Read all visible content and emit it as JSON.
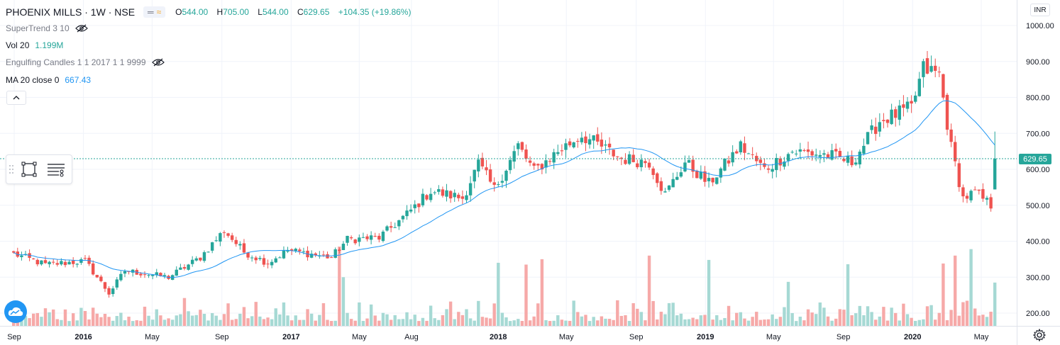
{
  "header": {
    "symbol": "PHOENIX MILLS · 1W · NSE",
    "toggle_a": "═",
    "toggle_b": "≈",
    "ohlc": {
      "o_label": "O",
      "o_value": "544.00",
      "h_label": "H",
      "h_value": "705.00",
      "l_label": "L",
      "l_value": "544.00",
      "c_label": "C",
      "c_value": "629.65",
      "change": "+104.35 (+19.86%)"
    }
  },
  "indicators": [
    {
      "name": "SuperTrend 3 10",
      "value": "",
      "hidden": true
    },
    {
      "name": "Vol 20",
      "value": "1.199M",
      "hidden": false
    },
    {
      "name": "Engulfing Candles 1 1 2017 1 1 9999",
      "value": "",
      "hidden": true
    },
    {
      "name": "MA 20 close 0",
      "value": "667.43",
      "hidden": false
    }
  ],
  "collapse_button": "^",
  "currency": "INR",
  "current_price": "629.65",
  "colors": {
    "up": "#26a69a",
    "down": "#ef5350",
    "vol_up": "#a6d9d4",
    "vol_down": "#f6a9a8",
    "ma": "#2196f3",
    "grid": "#f0f3fa",
    "axis_text": "#131722",
    "price_line": "#26a69a"
  },
  "icons": {
    "eye": "eye-crossed-icon",
    "rect_tool": "rectangle-tool-icon",
    "list_tool": "object-tree-icon",
    "logo": "tradingview-cloud-icon",
    "settings": "gear-icon"
  },
  "chart_data": {
    "type": "candlestick",
    "title": "PHOENIX MILLS · 1W · NSE",
    "y_ticks": [
      "1000.00",
      "900.00",
      "800.00",
      "700.00",
      "600.00",
      "500.00",
      "400.00",
      "300.00",
      "200.00"
    ],
    "x_ticks": [
      "Sep",
      "2016",
      "May",
      "Sep",
      "2017",
      "May",
      "Aug",
      "2018",
      "May",
      "Sep",
      "2019",
      "May",
      "Sep",
      "2020",
      "May"
    ],
    "ylim": [
      170,
      1040
    ],
    "keyframes": [
      {
        "d": "2015-08-31",
        "p": 365
      },
      {
        "d": "2015-10-26",
        "p": 335
      },
      {
        "d": "2016-01-04",
        "p": 345
      },
      {
        "d": "2016-02-15",
        "p": 255
      },
      {
        "d": "2016-03-14",
        "p": 318
      },
      {
        "d": "2016-05-30",
        "p": 300
      },
      {
        "d": "2016-07-25",
        "p": 355
      },
      {
        "d": "2016-09-05",
        "p": 430
      },
      {
        "d": "2016-10-10",
        "p": 370
      },
      {
        "d": "2016-11-21",
        "p": 340
      },
      {
        "d": "2016-12-26",
        "p": 375
      },
      {
        "d": "2017-03-13",
        "p": 355
      },
      {
        "d": "2017-04-10",
        "p": 405
      },
      {
        "d": "2017-06-05",
        "p": 410
      },
      {
        "d": "2017-07-24",
        "p": 475
      },
      {
        "d": "2017-09-04",
        "p": 540
      },
      {
        "d": "2017-10-30",
        "p": 520
      },
      {
        "d": "2017-11-27",
        "p": 615
      },
      {
        "d": "2017-12-25",
        "p": 545
      },
      {
        "d": "2018-02-05",
        "p": 665
      },
      {
        "d": "2018-03-05",
        "p": 595
      },
      {
        "d": "2018-04-16",
        "p": 650
      },
      {
        "d": "2018-05-28",
        "p": 695
      },
      {
        "d": "2018-08-06",
        "p": 630
      },
      {
        "d": "2018-09-24",
        "p": 620
      },
      {
        "d": "2018-10-22",
        "p": 530
      },
      {
        "d": "2018-11-26",
        "p": 620
      },
      {
        "d": "2019-01-07",
        "p": 560
      },
      {
        "d": "2019-03-04",
        "p": 665
      },
      {
        "d": "2019-04-15",
        "p": 600
      },
      {
        "d": "2019-06-03",
        "p": 650
      },
      {
        "d": "2019-08-05",
        "p": 640
      },
      {
        "d": "2019-09-16",
        "p": 620
      },
      {
        "d": "2019-11-04",
        "p": 735
      },
      {
        "d": "2019-12-30",
        "p": 770
      },
      {
        "d": "2020-01-20",
        "p": 880
      },
      {
        "d": "2020-02-17",
        "p": 865
      },
      {
        "d": "2020-03-09",
        "p": 660
      },
      {
        "d": "2020-03-30",
        "p": 520
      },
      {
        "d": "2020-04-20",
        "p": 535
      },
      {
        "d": "2020-05-18",
        "p": 500
      },
      {
        "d": "2020-05-25",
        "p": 629.65
      }
    ],
    "last_candle": {
      "open": 544.0,
      "high": 705.0,
      "low": 544.0,
      "close": 629.65
    },
    "volume_ylim": [
      170,
      400
    ],
    "volume_spikes": [
      {
        "d": "2017-03-27",
        "v": 385
      },
      {
        "d": "2017-04-03",
        "v": 300
      },
      {
        "d": "2018-01-01",
        "v": 340
      },
      {
        "d": "2018-02-19",
        "v": 335
      },
      {
        "d": "2018-03-19",
        "v": 350
      },
      {
        "d": "2018-09-24",
        "v": 360
      },
      {
        "d": "2019-01-07",
        "v": 348
      },
      {
        "d": "2019-05-27",
        "v": 287
      },
      {
        "d": "2019-09-09",
        "v": 336
      },
      {
        "d": "2020-02-24",
        "v": 338
      },
      {
        "d": "2020-03-16",
        "v": 360
      },
      {
        "d": "2020-04-13",
        "v": 378
      },
      {
        "d": "2020-05-25",
        "v": 285
      }
    ],
    "ma": {
      "period": 20,
      "source": "close",
      "last": 667.43
    }
  }
}
